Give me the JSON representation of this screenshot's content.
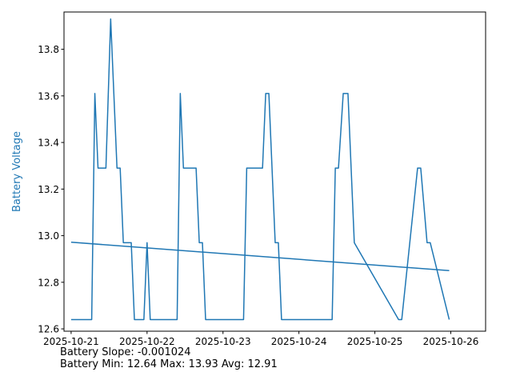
{
  "chart_data": {
    "type": "line",
    "title": "",
    "xlabel": "",
    "ylabel": "Battery Voltage",
    "x_ticks": [
      "2025-10-21",
      "2025-10-22",
      "2025-10-23",
      "2025-10-24",
      "2025-10-25",
      "2025-10-26"
    ],
    "y_ticks": [
      12.6,
      12.8,
      13.0,
      13.2,
      13.4,
      13.6,
      13.8
    ],
    "xlim": [
      "2025-10-20T21:45",
      "2025-10-26T11:00"
    ],
    "ylim": [
      12.59,
      13.96
    ],
    "grid": false,
    "series": [
      {
        "name": "",
        "color": "#1f77b4",
        "x": [
          "2025-10-21T00:00",
          "2025-10-21T06:30",
          "2025-10-21T07:30",
          "2025-10-21T08:30",
          "2025-10-21T11:00",
          "2025-10-21T12:30",
          "2025-10-21T14:30",
          "2025-10-21T15:30",
          "2025-10-21T16:30",
          "2025-10-21T19:00",
          "2025-10-21T20:00",
          "2025-10-21T23:00",
          "2025-10-22T00:00",
          "2025-10-22T01:00",
          "2025-10-22T09:30",
          "2025-10-22T10:30",
          "2025-10-22T11:30",
          "2025-10-22T15:30",
          "2025-10-22T16:30",
          "2025-10-22T17:30",
          "2025-10-22T18:30",
          "2025-10-23T06:30",
          "2025-10-23T07:30",
          "2025-10-23T12:30",
          "2025-10-23T13:30",
          "2025-10-23T14:30",
          "2025-10-23T16:30",
          "2025-10-23T17:30",
          "2025-10-23T18:30",
          "2025-10-24T07:00",
          "2025-10-24T07:30",
          "2025-10-24T10:30",
          "2025-10-24T11:30",
          "2025-10-24T12:30",
          "2025-10-24T14:00",
          "2025-10-24T15:30",
          "2025-10-24T16:30",
          "2025-10-24T17:30",
          "2025-10-25T07:30",
          "2025-10-25T08:30",
          "2025-10-25T13:30",
          "2025-10-25T14:30",
          "2025-10-25T16:30",
          "2025-10-25T17:30",
          "2025-10-25T23:30"
        ],
        "y": [
          12.64,
          12.64,
          13.61,
          13.29,
          13.29,
          13.93,
          13.29,
          13.29,
          12.97,
          12.97,
          12.64,
          12.64,
          12.97,
          12.64,
          12.64,
          13.61,
          13.29,
          13.29,
          12.97,
          12.97,
          12.64,
          12.64,
          13.29,
          13.29,
          13.61,
          13.61,
          12.97,
          12.97,
          12.64,
          12.64,
          12.64,
          12.64,
          13.29,
          13.29,
          13.61,
          13.61,
          13.29,
          12.97,
          12.64,
          12.64,
          13.29,
          13.29,
          12.97,
          12.97,
          12.64
        ]
      },
      {
        "name": "",
        "color": "#1f77b4",
        "x": [
          "2025-10-21T00:00",
          "2025-10-25T23:30"
        ],
        "y": [
          12.972,
          12.85
        ]
      }
    ]
  },
  "stats": {
    "slope_line": "Battery Slope: -0.001024",
    "minmax_line": "Battery Min: 12.64 Max: 13.93 Avg: 12.91"
  }
}
